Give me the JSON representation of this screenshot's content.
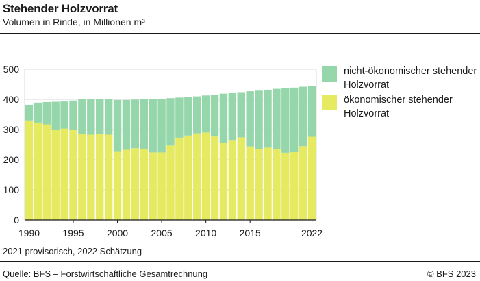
{
  "title": "Stehender Holzvorrat",
  "subtitle": "Volumen in Rinde, in Millionen m³",
  "note": "2021 provisorisch, 2022 Schätzung",
  "source": "Quelle: BFS – Forstwirtschaftliche Gesamtrechnung",
  "copyright": "© BFS 2023",
  "colors": {
    "economic": "#e5ea61",
    "non_economic": "#95d6ab",
    "axis": "#1a1a1a",
    "grid": "#d9d9d9"
  },
  "legend": [
    {
      "label": "nicht-ökonomischer stehender Holzvorrat",
      "color": "#95d6ab"
    },
    {
      "label": "ökonomischer stehender Holzvorrat",
      "color": "#e5ea61"
    }
  ],
  "chart_data": {
    "type": "bar",
    "stacked": true,
    "categories": [
      "1990",
      "1991",
      "1992",
      "1993",
      "1994",
      "1995",
      "1996",
      "1997",
      "1998",
      "1999",
      "2000",
      "2001",
      "2002",
      "2003",
      "2004",
      "2005",
      "2006",
      "2007",
      "2008",
      "2009",
      "2010",
      "2011",
      "2012",
      "2013",
      "2014",
      "2015",
      "2016",
      "2017",
      "2018",
      "2019",
      "2020",
      "2021",
      "2022"
    ],
    "x_tick_labels": [
      "1990",
      "",
      "",
      "",
      "",
      "1995",
      "",
      "",
      "",
      "",
      "2000",
      "",
      "",
      "",
      "",
      "2005",
      "",
      "",
      "",
      "",
      "2010",
      "",
      "",
      "",
      "",
      "2015",
      "",
      "",
      "",
      "",
      "",
      "",
      "2022"
    ],
    "series": [
      {
        "name": "ökonomischer stehender Holzvorrat",
        "values": [
          330,
          323,
          317,
          300,
          303,
          298,
          285,
          283,
          285,
          283,
          226,
          233,
          238,
          235,
          224,
          224,
          247,
          273,
          280,
          287,
          290,
          277,
          256,
          263,
          274,
          244,
          235,
          240,
          235,
          223,
          225,
          245,
          276
        ]
      },
      {
        "name": "nicht-ökonomischer stehender Holzvorrat",
        "values": [
          52,
          66,
          74,
          92,
          90,
          98,
          115,
          117,
          116,
          118,
          172,
          165,
          161,
          165,
          177,
          178,
          157,
          133,
          129,
          123,
          123,
          139,
          163,
          159,
          150,
          183,
          194,
          192,
          200,
          214,
          214,
          197,
          168
        ]
      }
    ],
    "title": "Stehender Holzvorrat",
    "ylabel": "Volumen in Rinde, in Millionen m³",
    "ylim": [
      0,
      500
    ],
    "y_ticks": [
      0,
      100,
      200,
      300,
      400,
      500
    ],
    "grid": true,
    "legend_position": "right"
  }
}
